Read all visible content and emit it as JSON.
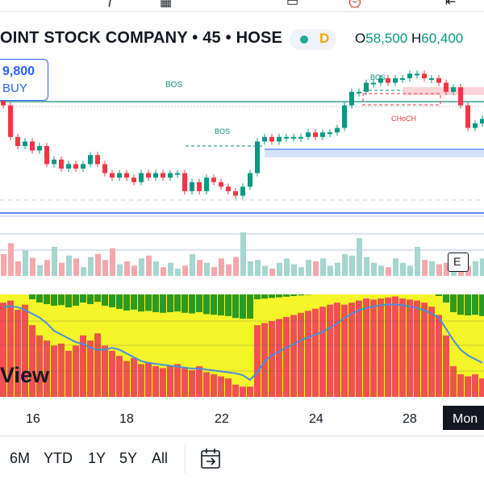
{
  "header": {
    "symbol": "OINT STOCK COMPANY • 45 • HOSE",
    "status_letter": "D",
    "open_label": "O",
    "open_value": "58,500",
    "high_label": "H",
    "high_value": "60,400"
  },
  "price_box": {
    "price": "9,800",
    "side": "BUY"
  },
  "annotations": {
    "bos1": "BOS",
    "bos2": "BOS",
    "bos3": "BOS",
    "choch": "CHoCH"
  },
  "x_axis": {
    "d16": "16",
    "d18": "18",
    "d22": "22",
    "d24": "24",
    "d28": "28",
    "current": "Mon"
  },
  "watermark": "View",
  "ranges": {
    "r6m": "6M",
    "ytd": "YTD",
    "r1y": "1Y",
    "r5y": "5Y",
    "all": "All"
  },
  "e_button": "E",
  "colors": {
    "up": "#089981",
    "down": "#f23645",
    "bar_red": "#ef5350",
    "bar_green": "#2e9a1f",
    "bar_yellow": "#f5f52a",
    "ma_line": "#4a90d9",
    "accent": "#2962ff"
  },
  "icons": {
    "calendar": "calendar-goto-icon"
  },
  "chart_data": {
    "type": "candlestick",
    "candles": [
      {
        "o": 59.4,
        "c": 59.3
      },
      {
        "o": 59.3,
        "c": 58.6
      },
      {
        "o": 58.6,
        "c": 58.4
      },
      {
        "o": 58.4,
        "c": 58.5
      },
      {
        "o": 58.5,
        "c": 58.3
      },
      {
        "o": 58.3,
        "c": 58.4
      },
      {
        "o": 58.4,
        "c": 58.0
      },
      {
        "o": 58.0,
        "c": 58.1
      },
      {
        "o": 58.1,
        "c": 57.9
      },
      {
        "o": 57.9,
        "c": 58.0
      },
      {
        "o": 58.0,
        "c": 57.9
      },
      {
        "o": 57.9,
        "c": 58.0
      },
      {
        "o": 58.0,
        "c": 58.2
      },
      {
        "o": 58.2,
        "c": 58.0
      },
      {
        "o": 58.0,
        "c": 57.8
      },
      {
        "o": 57.8,
        "c": 57.7
      },
      {
        "o": 57.7,
        "c": 57.8
      },
      {
        "o": 57.8,
        "c": 57.7
      },
      {
        "o": 57.7,
        "c": 57.6
      },
      {
        "o": 57.6,
        "c": 57.8
      },
      {
        "o": 57.8,
        "c": 57.7
      },
      {
        "o": 57.7,
        "c": 57.8
      },
      {
        "o": 57.8,
        "c": 57.7
      },
      {
        "o": 57.7,
        "c": 57.8
      },
      {
        "o": 57.8,
        "c": 57.8
      },
      {
        "o": 57.8,
        "c": 57.4
      },
      {
        "o": 57.4,
        "c": 57.6
      },
      {
        "o": 57.6,
        "c": 57.4
      },
      {
        "o": 57.4,
        "c": 57.7
      },
      {
        "o": 57.7,
        "c": 57.6
      },
      {
        "o": 57.6,
        "c": 57.5
      },
      {
        "o": 57.5,
        "c": 57.4
      },
      {
        "o": 57.4,
        "c": 57.3
      },
      {
        "o": 57.3,
        "c": 57.5
      },
      {
        "o": 57.5,
        "c": 57.8
      },
      {
        "o": 57.8,
        "c": 58.5
      },
      {
        "o": 58.5,
        "c": 58.6
      },
      {
        "o": 58.6,
        "c": 58.5
      },
      {
        "o": 58.5,
        "c": 58.6
      },
      {
        "o": 58.6,
        "c": 58.6
      },
      {
        "o": 58.6,
        "c": 58.6
      },
      {
        "o": 58.6,
        "c": 58.6
      },
      {
        "o": 58.6,
        "c": 58.7
      },
      {
        "o": 58.7,
        "c": 58.6
      },
      {
        "o": 58.6,
        "c": 58.7
      },
      {
        "o": 58.7,
        "c": 58.7
      },
      {
        "o": 58.7,
        "c": 58.8
      },
      {
        "o": 58.8,
        "c": 59.3
      },
      {
        "o": 59.3,
        "c": 59.6
      },
      {
        "o": 59.6,
        "c": 59.6
      },
      {
        "o": 59.6,
        "c": 59.8
      },
      {
        "o": 59.8,
        "c": 59.8
      },
      {
        "o": 59.8,
        "c": 59.9
      },
      {
        "o": 59.9,
        "c": 59.8
      },
      {
        "o": 59.8,
        "c": 59.9
      },
      {
        "o": 59.9,
        "c": 59.9
      },
      {
        "o": 59.9,
        "c": 60.0
      },
      {
        "o": 60.0,
        "c": 60.0
      },
      {
        "o": 60.0,
        "c": 59.9
      },
      {
        "o": 59.9,
        "c": 59.9
      },
      {
        "o": 59.9,
        "c": 59.8
      },
      {
        "o": 59.8,
        "c": 59.6
      },
      {
        "o": 59.6,
        "c": 59.7
      },
      {
        "o": 59.7,
        "c": 59.3
      },
      {
        "o": 59.3,
        "c": 58.8
      },
      {
        "o": 58.8,
        "c": 58.9
      },
      {
        "o": 58.9,
        "c": 59.0
      }
    ],
    "volume": [
      30,
      45,
      20,
      35,
      25,
      15,
      22,
      40,
      18,
      28,
      24,
      12,
      26,
      30,
      22,
      38,
      16,
      20,
      14,
      24,
      28,
      20,
      12,
      18,
      10,
      14,
      30,
      22,
      18,
      12,
      24,
      16,
      26,
      60,
      20,
      22,
      14,
      10,
      18,
      24,
      16,
      12,
      22,
      20,
      24,
      14,
      18,
      30,
      28,
      52,
      26,
      18,
      14,
      12,
      24,
      18,
      14,
      40,
      22,
      20,
      16,
      18,
      24,
      26,
      14,
      20,
      24
    ],
    "osc": [
      92,
      94,
      85,
      90,
      70,
      60,
      55,
      50,
      52,
      45,
      50,
      60,
      55,
      62,
      50,
      45,
      40,
      35,
      38,
      32,
      34,
      30,
      28,
      30,
      32,
      28,
      26,
      30,
      24,
      22,
      20,
      18,
      12,
      10,
      10,
      70,
      72,
      74,
      76,
      78,
      80,
      82,
      84,
      86,
      88,
      90,
      92,
      90,
      92,
      94,
      96,
      95,
      96,
      97,
      98,
      96,
      95,
      94,
      92,
      88,
      80,
      60,
      30,
      22,
      20,
      22,
      18
    ],
    "ma": [
      95,
      96,
      95,
      92,
      88,
      84,
      78,
      70,
      66,
      62,
      58,
      56,
      52,
      50,
      50,
      52,
      50,
      46,
      42,
      38,
      36,
      35,
      34,
      33,
      32,
      31,
      30,
      30,
      29,
      28,
      27,
      26,
      25,
      23,
      18,
      26,
      38,
      44,
      48,
      52,
      56,
      60,
      63,
      66,
      69,
      73,
      78,
      84,
      88,
      92,
      94,
      96,
      97,
      98,
      98,
      97,
      96,
      94,
      92,
      88,
      84,
      72,
      60,
      50,
      44,
      40,
      36
    ]
  }
}
